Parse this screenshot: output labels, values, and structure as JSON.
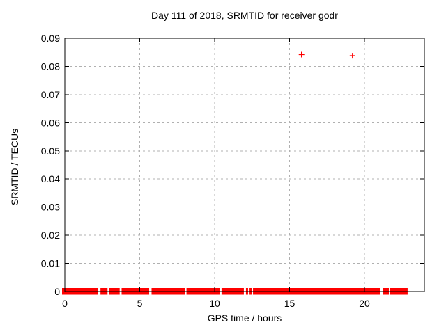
{
  "chart_data": {
    "type": "scatter",
    "title": "Day 111 of 2018, SRMTID for receiver godr",
    "xlabel": "GPS time / hours",
    "ylabel": "SRMTID / TECUs",
    "xlim": [
      0,
      24
    ],
    "ylim": [
      0,
      0.09
    ],
    "xticks": [
      0,
      5,
      10,
      15,
      20
    ],
    "xtick_labels": [
      "0",
      "5",
      "10",
      "15",
      "20"
    ],
    "yticks": [
      0,
      0.01,
      0.02,
      0.03,
      0.04,
      0.05,
      0.06,
      0.07,
      0.08,
      0.09
    ],
    "ytick_labels": [
      "0",
      "0.01",
      "0.02",
      "0.03",
      "0.04",
      "0.05",
      "0.06",
      "0.07",
      "0.08",
      "0.09"
    ],
    "grid": true,
    "legend_position": "none",
    "marker": "plus",
    "colors": {
      "marker": "#ff0000",
      "grid": "#b0b0b0",
      "axis": "#000000",
      "background": "#ffffff"
    },
    "points": [
      {
        "x": 15.8,
        "y": 0.0842
      },
      {
        "x": 19.2,
        "y": 0.0838
      }
    ],
    "baseline_value": 0,
    "baseline_segments": [
      [
        0,
        2.22
      ],
      [
        2.38,
        2.85
      ],
      [
        2.96,
        3.66
      ],
      [
        3.79,
        5.63
      ],
      [
        5.79,
        8.0
      ],
      [
        8.12,
        10.33
      ],
      [
        10.46,
        11.95
      ],
      [
        12.09,
        12.23
      ],
      [
        12.33,
        12.47
      ],
      [
        12.56,
        21.07
      ],
      [
        21.21,
        21.63
      ],
      [
        21.72,
        22.88
      ]
    ]
  }
}
